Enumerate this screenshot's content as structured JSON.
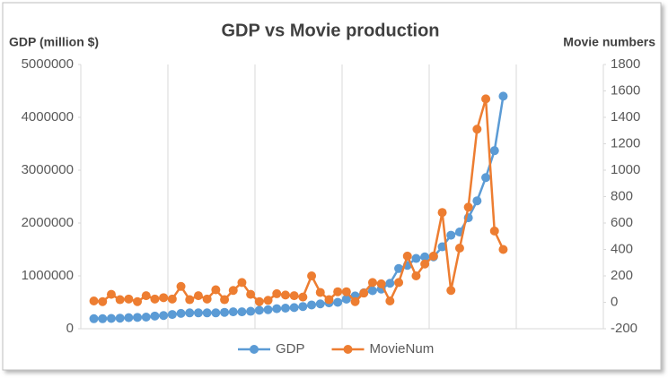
{
  "chart_data": {
    "type": "line",
    "title": "GDP vs Movie production",
    "y_label": "GDP (million $)",
    "y2_label": "Movie numbers",
    "categories": [
      null,
      null,
      null,
      null,
      null,
      null,
      null,
      null,
      null,
      null,
      null,
      null,
      null,
      null,
      null,
      null,
      null,
      null,
      null,
      null,
      null,
      null,
      null,
      null,
      null,
      null,
      null,
      null,
      null,
      null,
      null,
      null,
      null,
      null,
      null,
      null,
      null,
      null,
      null,
      null,
      null,
      null,
      null,
      null,
      null,
      null,
      null,
      null,
      null,
      null,
      null,
      null,
      null,
      null,
      null,
      null,
      null,
      null,
      null,
      null
    ],
    "series": [
      {
        "name": "GDP",
        "color": "#5b9bd5",
        "axis": "y",
        "values": [
          null,
          190000,
          190000,
          195000,
          200000,
          210000,
          215000,
          220000,
          240000,
          250000,
          270000,
          290000,
          300000,
          300000,
          300000,
          300000,
          310000,
          320000,
          320000,
          330000,
          350000,
          360000,
          380000,
          390000,
          400000,
          420000,
          450000,
          470000,
          490000,
          500000,
          560000,
          620000,
          680000,
          720000,
          750000,
          860000,
          1140000,
          1200000,
          1330000,
          1360000,
          1360000,
          1550000,
          1770000,
          1830000,
          2100000,
          2420000,
          2860000,
          3370000,
          4400000,
          null,
          null,
          null,
          null,
          null,
          null,
          null,
          null,
          null,
          null,
          null
        ]
      },
      {
        "name": "MovieNum",
        "color": "#ed7d31",
        "axis": "y2",
        "values": [
          null,
          10,
          5,
          60,
          20,
          25,
          5,
          50,
          25,
          35,
          25,
          120,
          20,
          50,
          25,
          95,
          20,
          90,
          150,
          60,
          5,
          15,
          65,
          55,
          50,
          40,
          200,
          75,
          20,
          80,
          80,
          5,
          70,
          150,
          140,
          10,
          150,
          350,
          200,
          290,
          350,
          680,
          90,
          410,
          720,
          1310,
          1540,
          540,
          400,
          null,
          null,
          null,
          null,
          null,
          null,
          null,
          null,
          null,
          null,
          null
        ]
      }
    ],
    "ylim": [
      0,
      5000000
    ],
    "yticks": [
      0,
      1000000,
      2000000,
      3000000,
      4000000,
      5000000
    ],
    "y2lim": [
      -200,
      1800
    ],
    "y2ticks": [
      -200,
      0,
      200,
      400,
      600,
      800,
      1000,
      1200,
      1400,
      1600,
      1800
    ],
    "legend": "bottom"
  }
}
